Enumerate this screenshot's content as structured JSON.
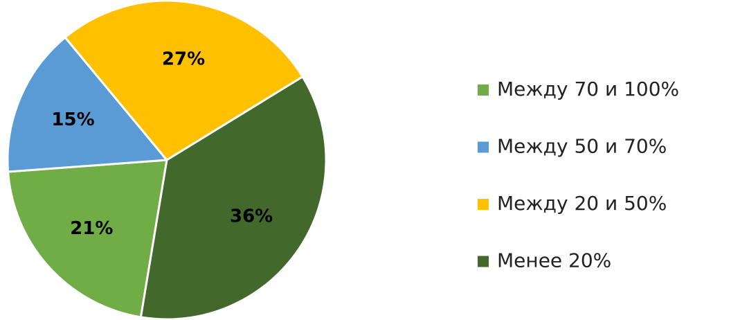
{
  "chart_data": {
    "type": "pie",
    "categories": [
      "Между 70 и 100%",
      "Между 50 и 70%",
      "Между 20 и 50%",
      "Менее 20%"
    ],
    "values": [
      21,
      15,
      27,
      36
    ],
    "value_labels": [
      "21%",
      "15%",
      "27%",
      "36%"
    ],
    "colors": [
      "#70ad47",
      "#5b9bd5",
      "#ffc000",
      "#43682b"
    ],
    "legend": "right"
  }
}
